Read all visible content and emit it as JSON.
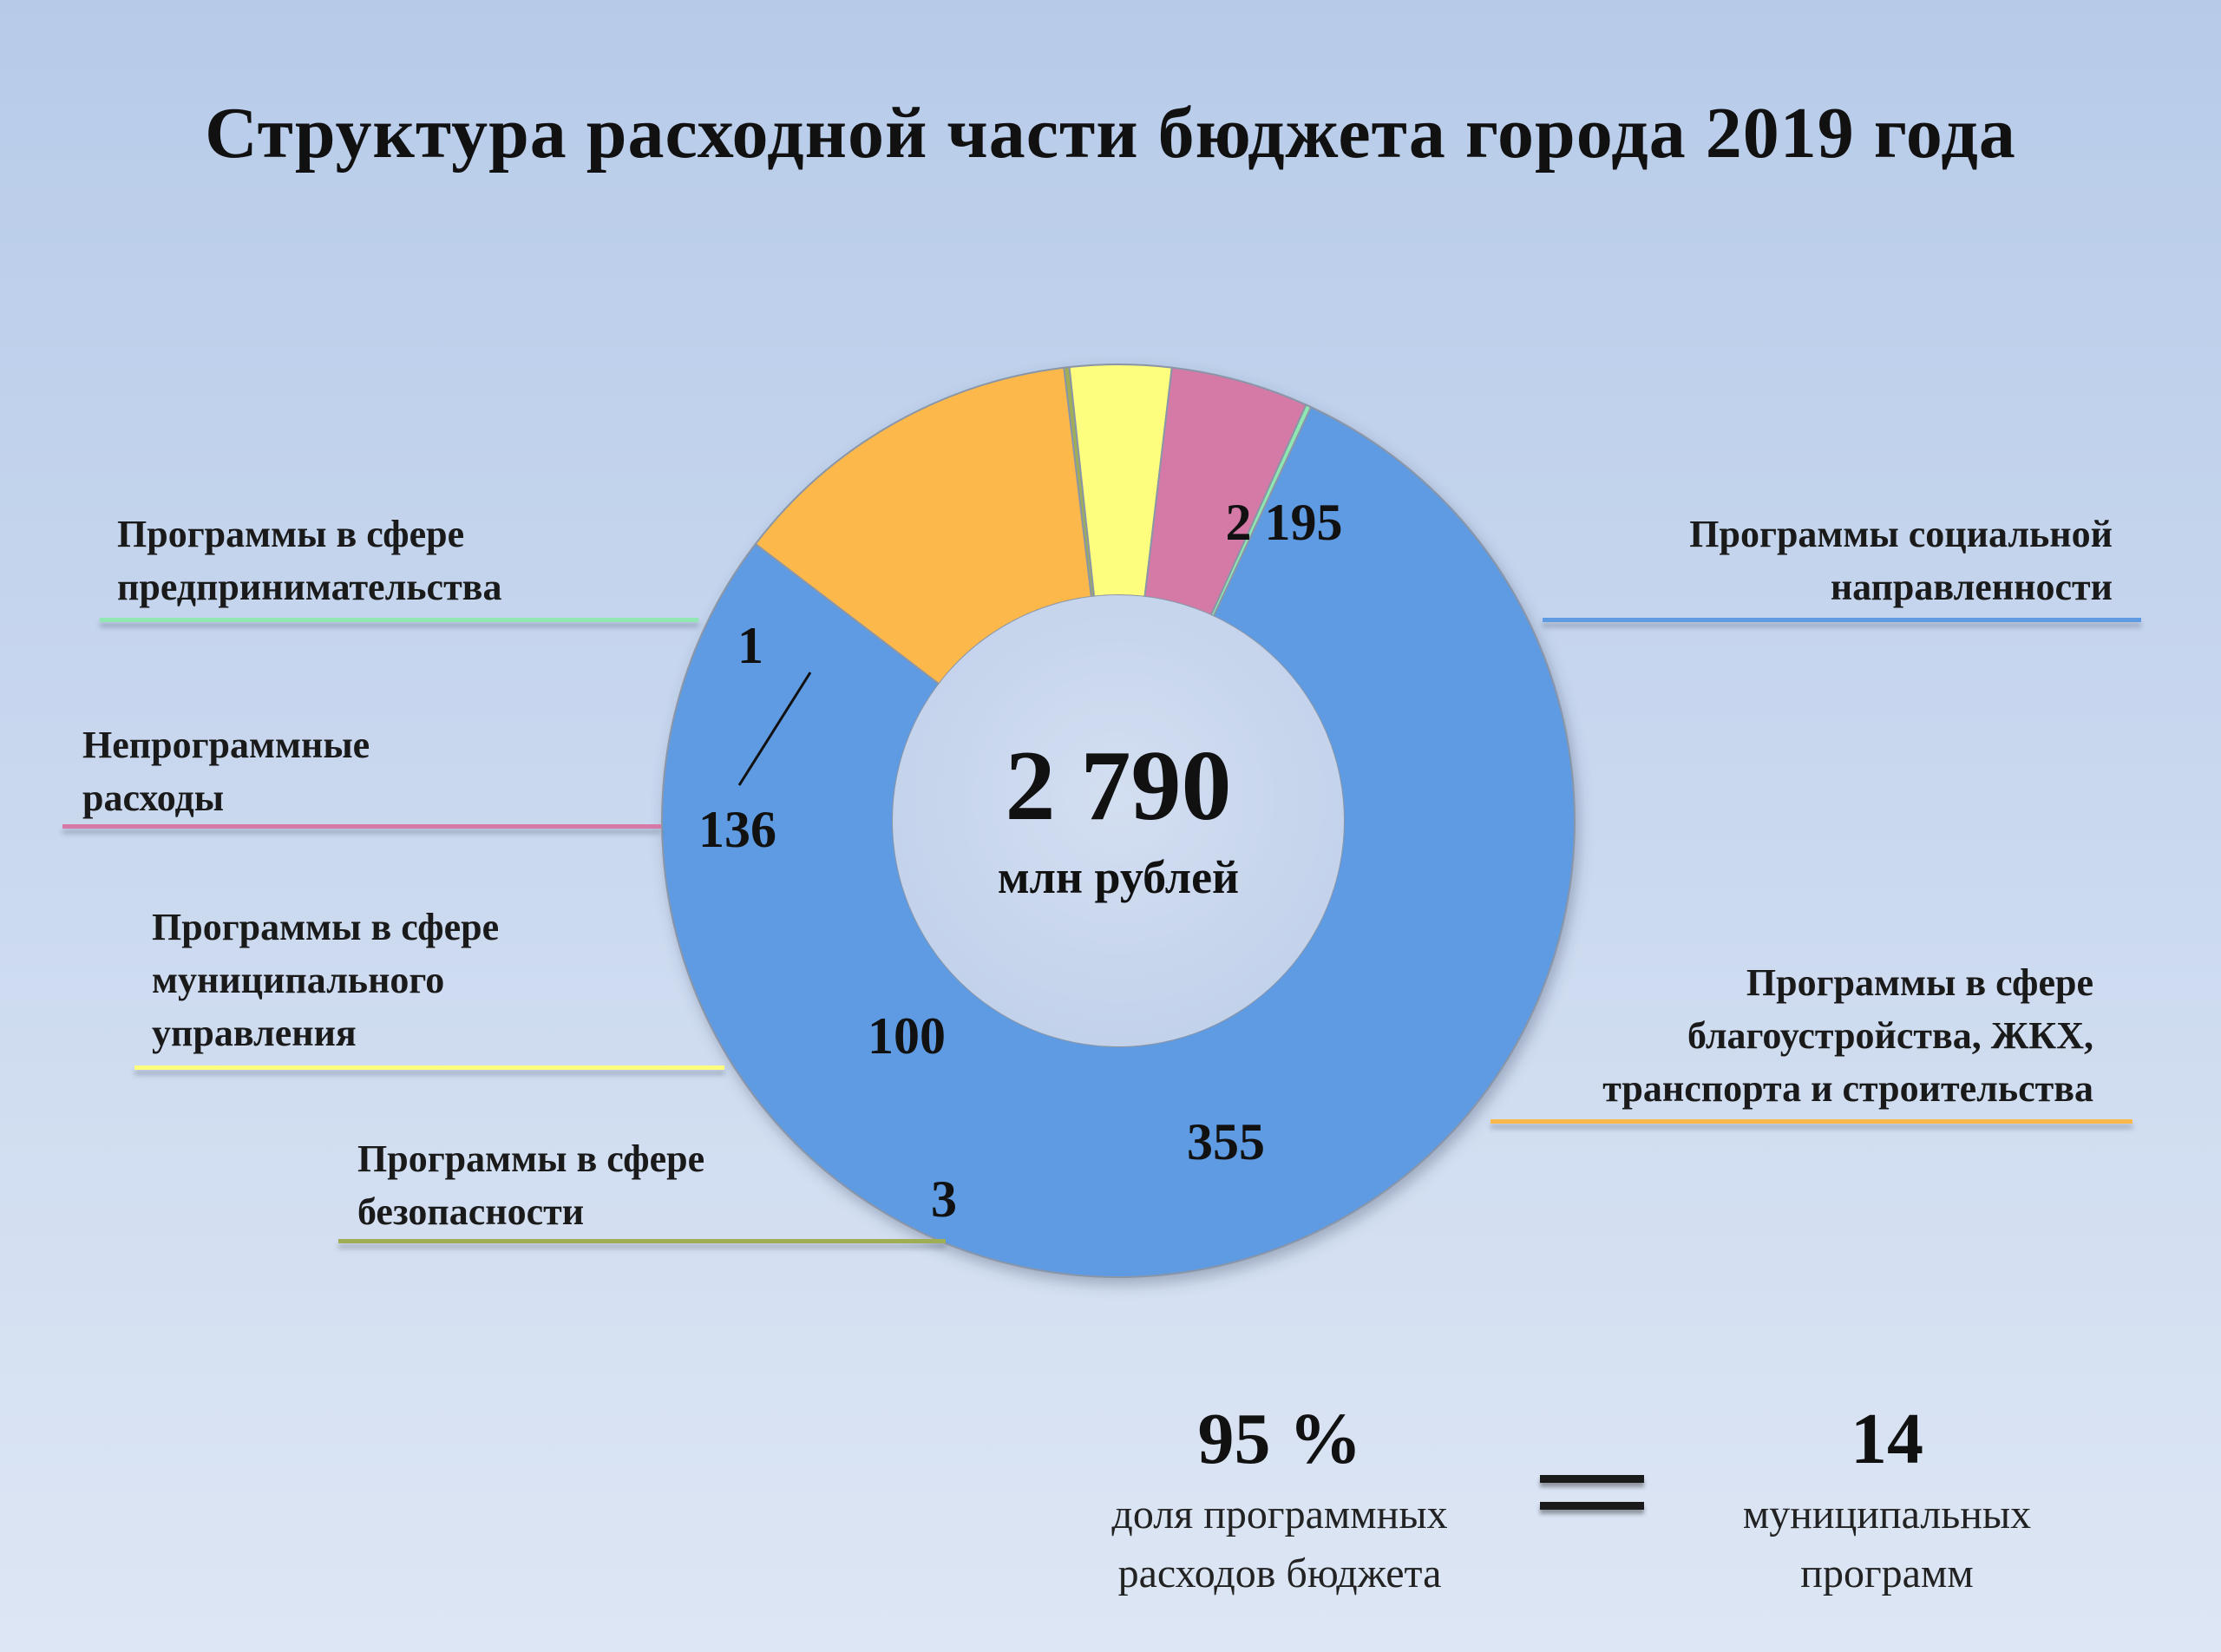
{
  "title": "Структура расходной части бюджета города 2019 года",
  "center": {
    "total": "2 790",
    "unit": "млн рублей"
  },
  "chart_data": {
    "type": "donut",
    "title": "Структура расходной части бюджета города 2019 года",
    "total": 2790,
    "unit": "млн рублей",
    "slices": [
      {
        "label": "Программы социальной направленности",
        "value": 2195,
        "display": "2 195",
        "color": "#5f9be2"
      },
      {
        "label": "Программы в сфере благоустройства, ЖКХ, транспорта и строительства",
        "value": 355,
        "display": "355",
        "color": "#fdb84c"
      },
      {
        "label": "Программы в сфере безопасности",
        "value": 3,
        "display": "3",
        "color": "#9fae55"
      },
      {
        "label": "Программы в сфере муниципального управления",
        "value": 100,
        "display": "100",
        "color": "#fdfd7e"
      },
      {
        "label": "Непрограммные расходы",
        "value": 136,
        "display": "136",
        "color": "#d579a7"
      },
      {
        "label": "Программы в сфере предпринимательства",
        "value": 1,
        "display": "1",
        "color": "#8fe8b2"
      }
    ]
  },
  "legend_labels": {
    "social": [
      "Программы социальной",
      "направленности"
    ],
    "improvement": [
      "Программы в сфере",
      "благоустройства, ЖКХ,",
      "транспорта и строительства"
    ],
    "security": [
      "Программы в сфере",
      "безопасности"
    ],
    "municipal": [
      "Программы в сфере",
      "муниципального",
      "управления"
    ],
    "nonprogram": [
      "Непрограммные",
      "расходы"
    ],
    "business": [
      "Программы в сфере",
      "предпринимательства"
    ]
  },
  "stats": {
    "share_value": "95 %",
    "share_caption": [
      "доля программных",
      "расходов бюджета"
    ],
    "programs_value": "14",
    "programs_caption": [
      "муниципальных",
      "программ"
    ]
  }
}
